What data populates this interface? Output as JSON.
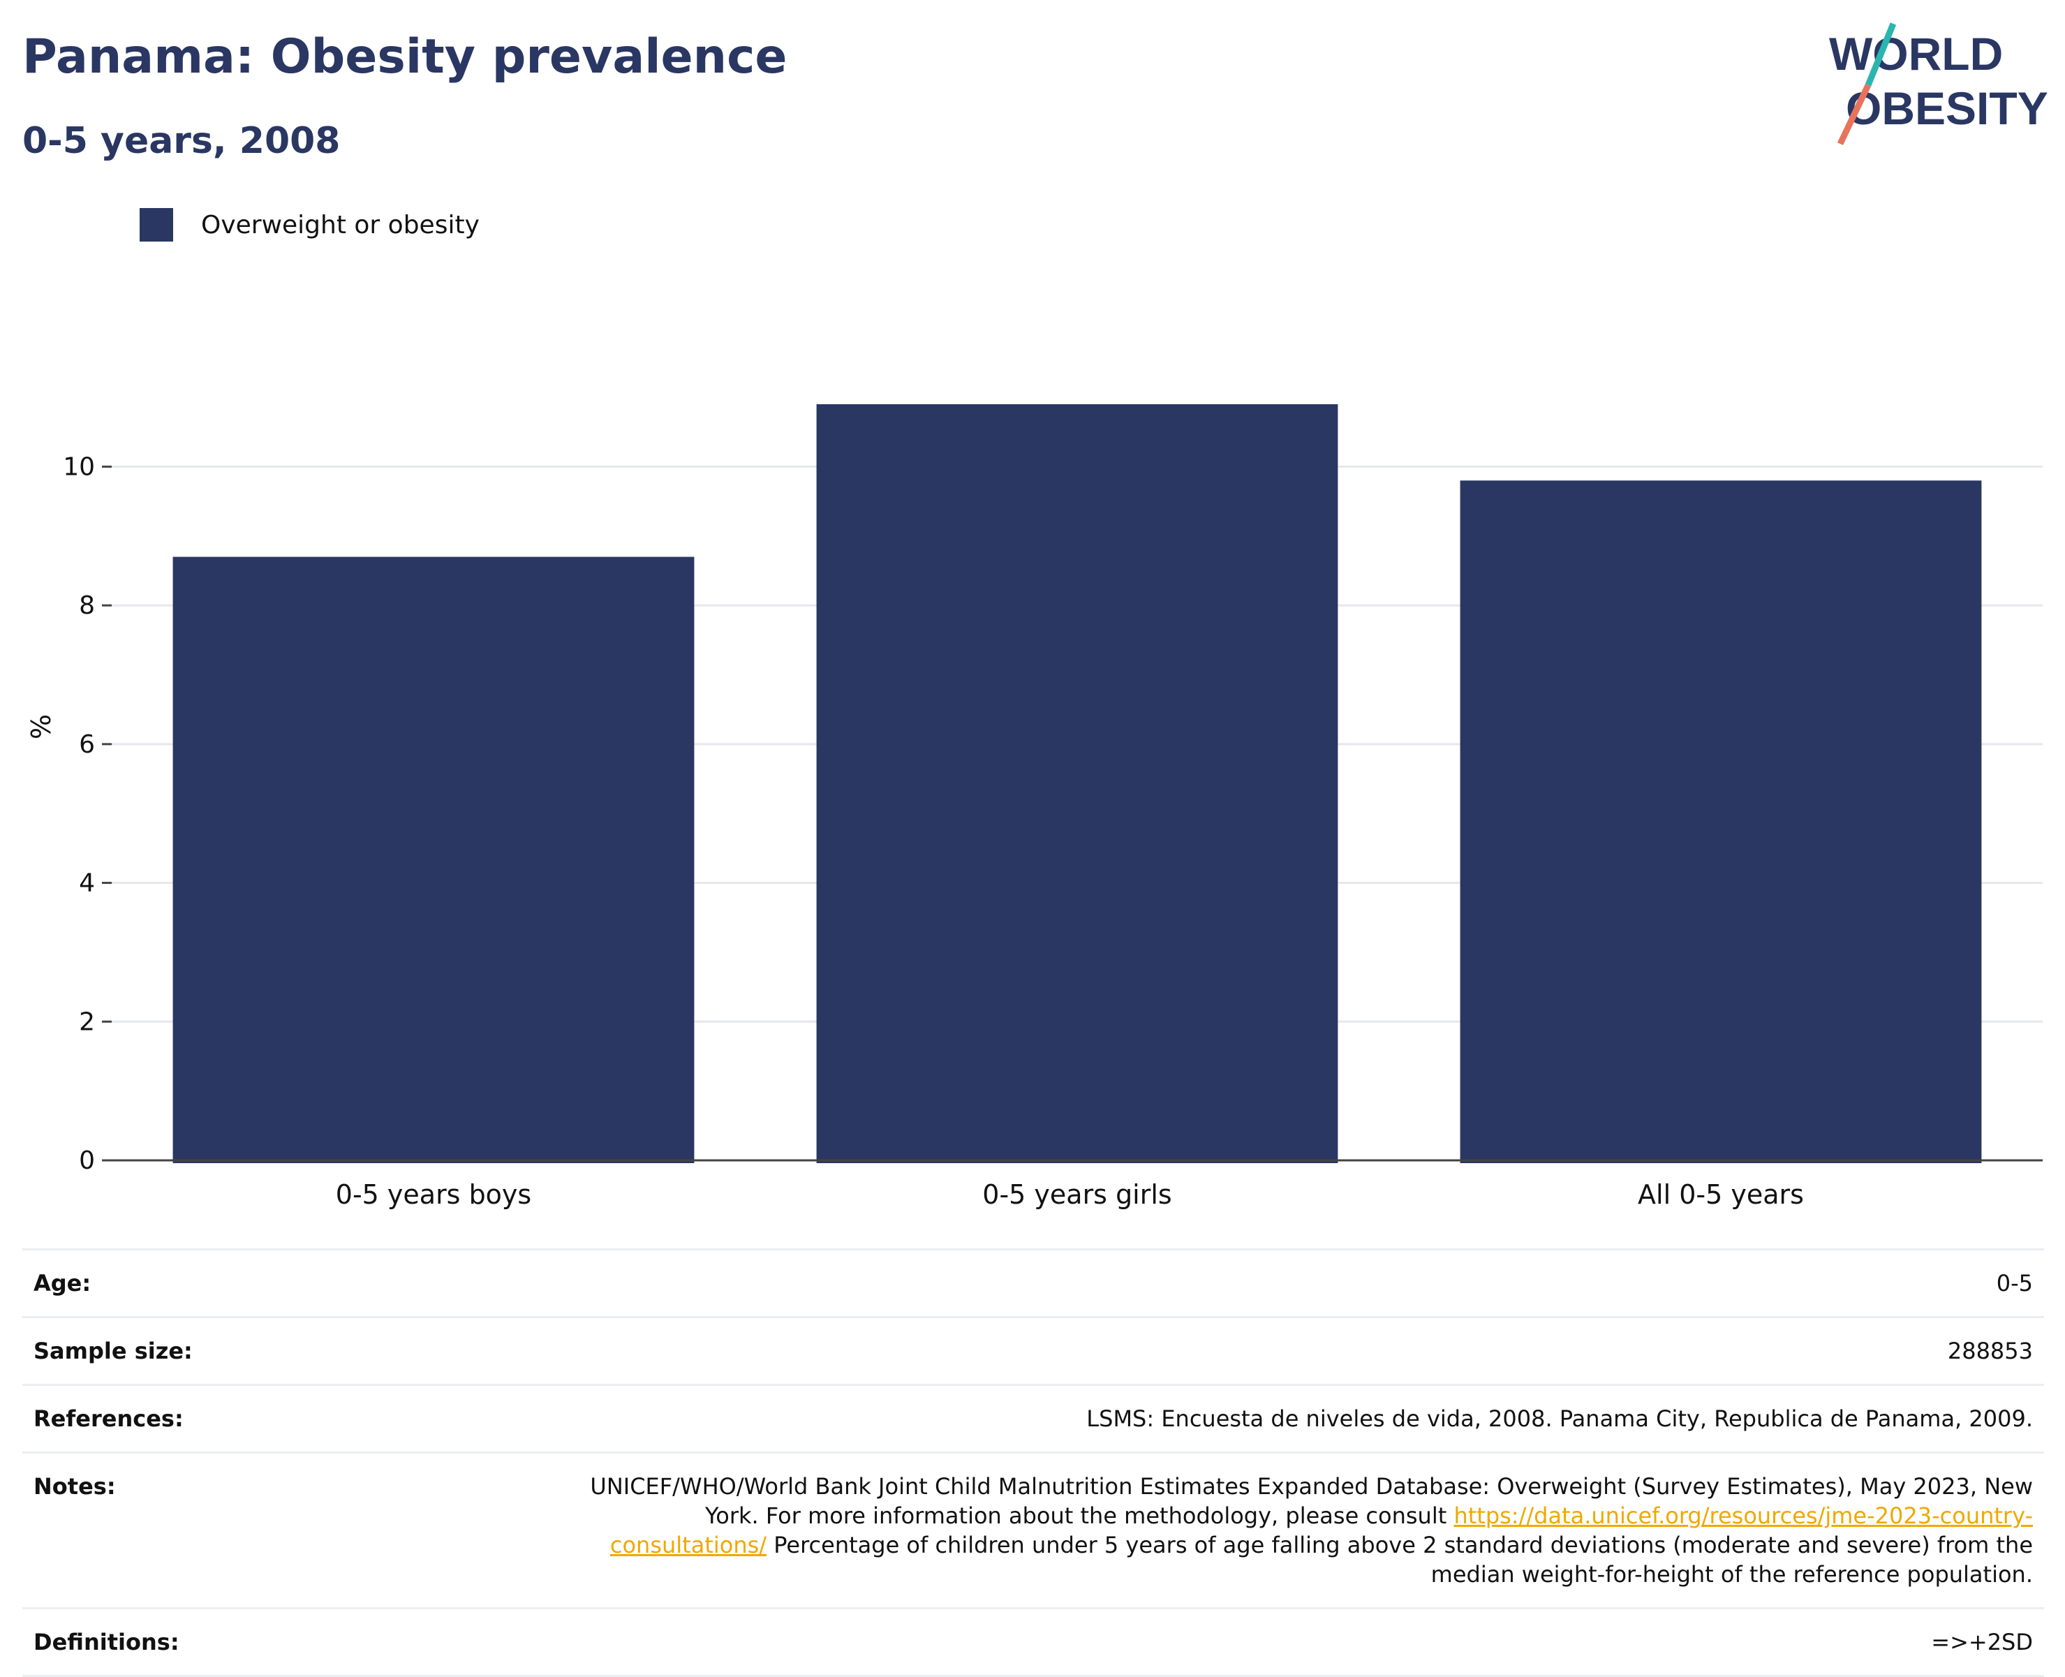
{
  "header": {
    "title": "Panama: Obesity prevalence",
    "subtitle": "0-5 years, 2008"
  },
  "logo": {
    "line1": "WORLD",
    "line2": "OBESITY"
  },
  "colors": {
    "bar": "#2a3763",
    "text": "#111111",
    "grid": "#e6e8ee",
    "link": "#f0a800",
    "accent_teal": "#2bb5b0",
    "accent_coral": "#e8735c"
  },
  "chart_data": {
    "type": "bar",
    "categories": [
      "0-5 years boys",
      "0-5 years girls",
      "All 0-5 years"
    ],
    "series": [
      {
        "name": "Overweight or obesity",
        "values": [
          8.7,
          10.9,
          9.8
        ]
      }
    ],
    "xlabel": "",
    "ylabel": "%",
    "ylim": [
      0,
      12.5
    ],
    "yticks": [
      0,
      2,
      4,
      6,
      8,
      10
    ],
    "grid": true,
    "legend": "top-left"
  },
  "info": {
    "age": {
      "label": "Age:",
      "value": "0-5"
    },
    "sample_size": {
      "label": "Sample size:",
      "value": "288853"
    },
    "references": {
      "label": "References:",
      "value": "LSMS: Encuesta de niveles de vida, 2008. Panama City, Republica de Panama, 2009."
    },
    "notes": {
      "label": "Notes:",
      "text_before": "UNICEF/WHO/World Bank Joint Child Malnutrition Estimates Expanded Database: Overweight (Survey Estimates), May 2023, New York. For more information about the methodology, please consult ",
      "link": "https://data.unicef.org/resources/jme-2023-country-consultations/",
      "text_after": " Percentage of children under 5 years of age falling above 2 standard deviations (moderate and severe) from the median weight-for-height of the reference population."
    },
    "definitions": {
      "label": "Definitions:",
      "value": "=>+2SD"
    }
  }
}
